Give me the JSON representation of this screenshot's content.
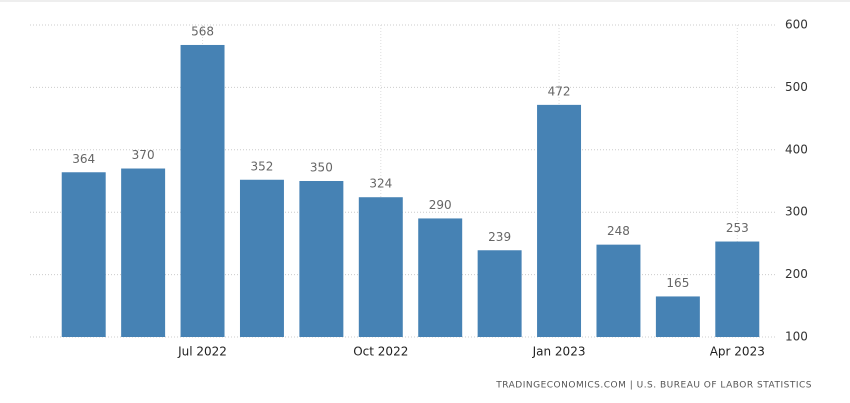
{
  "chart_data": {
    "type": "bar",
    "categories": [
      null,
      null,
      "Jul 2022",
      null,
      null,
      "Oct 2022",
      null,
      null,
      "Jan 2023",
      null,
      null,
      "Apr 2023"
    ],
    "values": [
      364,
      370,
      568,
      352,
      350,
      324,
      290,
      239,
      472,
      248,
      165,
      253
    ],
    "color": "#4682b4",
    "ylim": [
      100,
      600
    ],
    "yticks": [
      100,
      200,
      300,
      400,
      500,
      600
    ],
    "grid": true,
    "source": "TRADINGECONOMICS.COM | U.S. BUREAU OF LABOR STATISTICS"
  }
}
